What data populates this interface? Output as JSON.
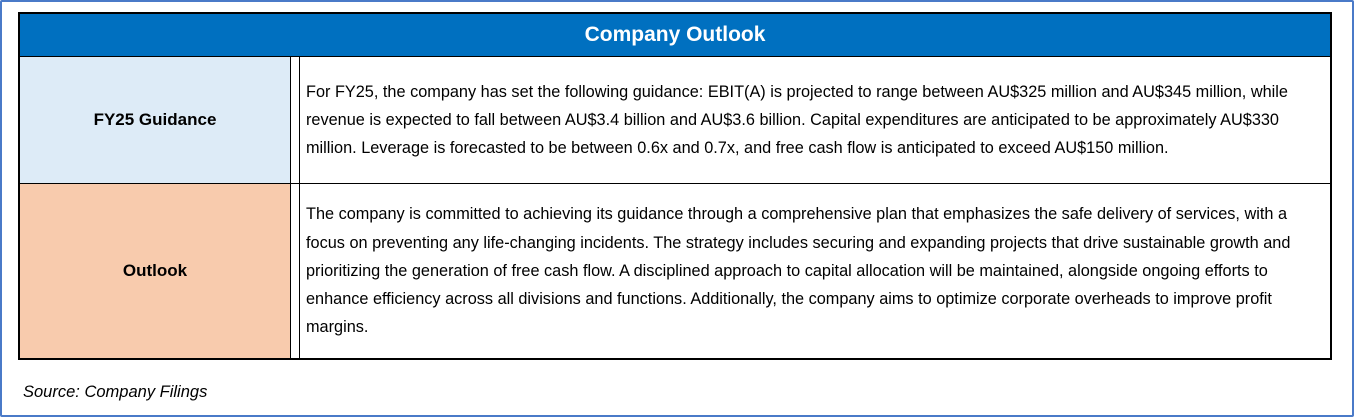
{
  "title": "Company Outlook",
  "rows": [
    {
      "label": "FY25 Guidance",
      "text": "For FY25, the company has set the following guidance: EBIT(A) is projected to range between AU$325 million and AU$345 million, while revenue is expected to fall between AU$3.4 billion and AU$3.6 billion. Capital expenditures are anticipated to be approximately AU$330 million. Leverage is forecasted to be between 0.6x and 0.7x, and free cash flow is anticipated to exceed AU$150 million."
    },
    {
      "label": "Outlook",
      "text": "The company is committed to achieving its guidance through a comprehensive plan that emphasizes the safe delivery of services, with a focus on preventing any life-changing incidents. The strategy includes securing and expanding projects that drive sustainable growth and prioritizing the generation of free cash flow. A disciplined approach to capital allocation will be maintained, alongside ongoing efforts to enhance efficiency across all divisions and functions. Additionally, the company aims to optimize corporate overheads to improve profit margins."
    }
  ],
  "source": "Source: Company Filings"
}
